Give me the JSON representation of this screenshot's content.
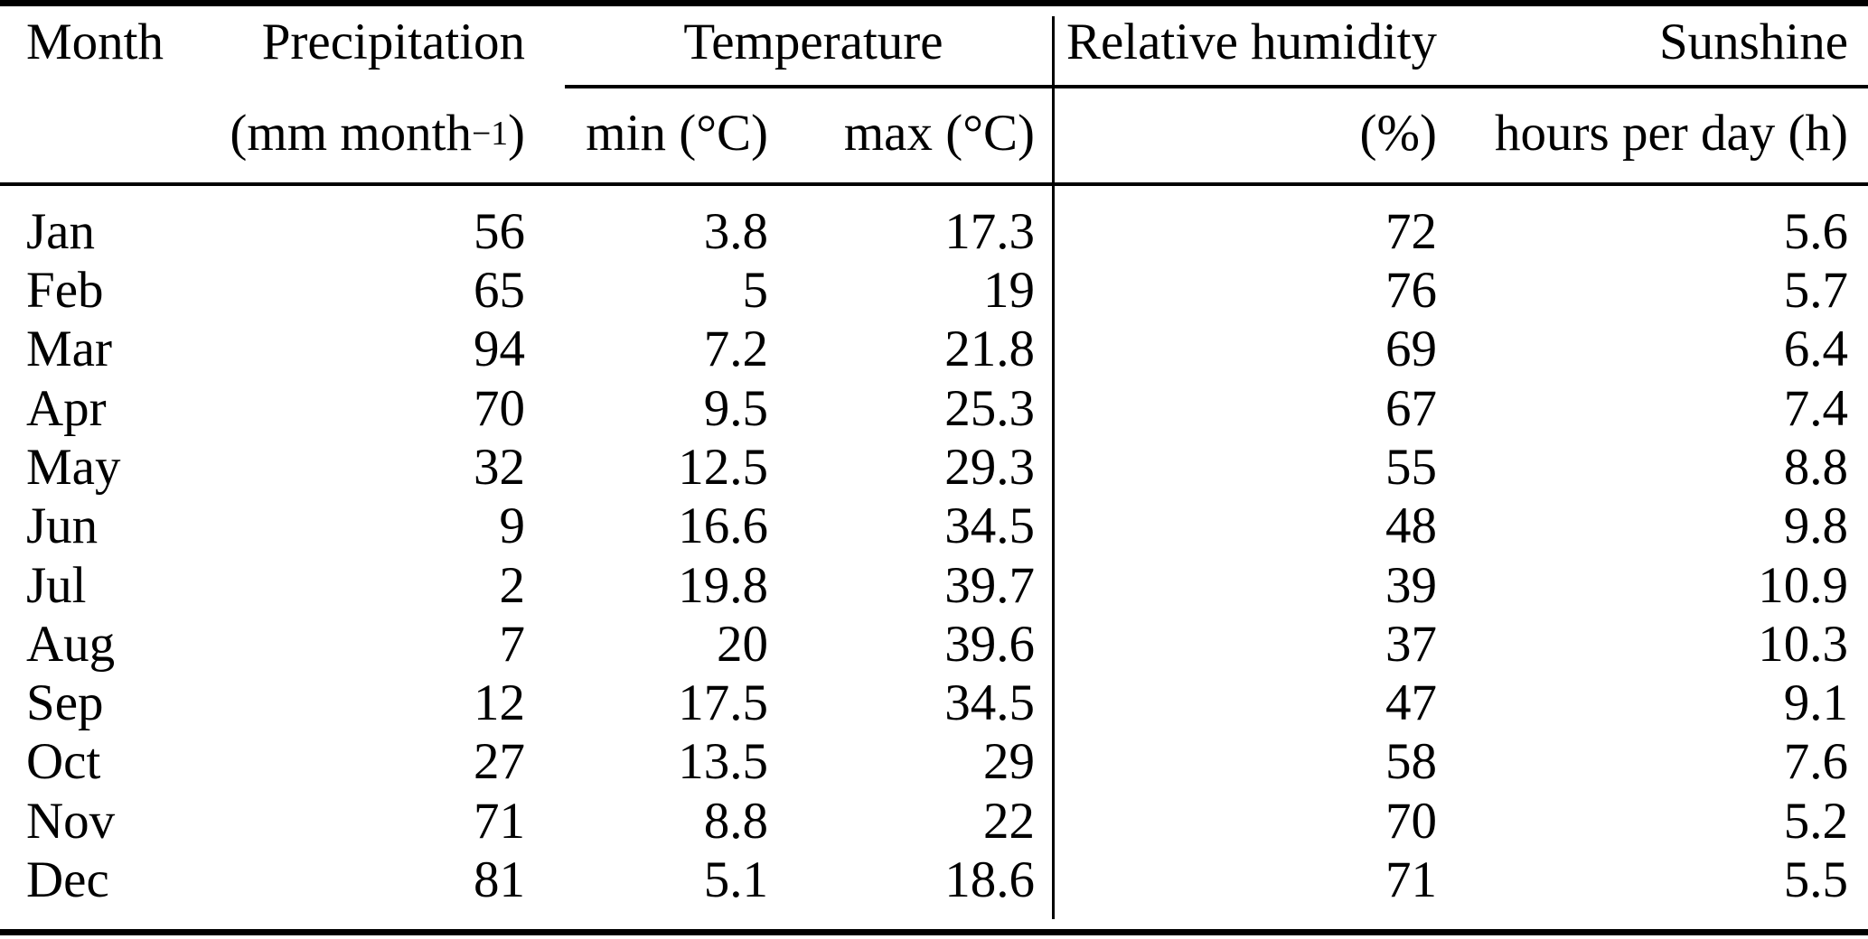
{
  "colors": {
    "background": "#ffffff",
    "text": "#000000",
    "rules": "#000000"
  },
  "table": {
    "header": {
      "month": "Month",
      "precipitation": "Precipitation",
      "temperature_group": "Temperature",
      "relative_humidity": "Relative humidity",
      "sunshine": "Sunshine",
      "units": {
        "precipitation_base": "(mm month",
        "precipitation_exponent": "−1",
        "precipitation_close": ")",
        "temp_min": "min (°C)",
        "temp_max": "max (°C)",
        "humidity": "(%)",
        "sunshine": "hours per day (h)"
      }
    },
    "rows": [
      {
        "month": "Jan",
        "precipitation": "56",
        "temp_min": "3.8",
        "temp_max": "17.3",
        "humidity": "72",
        "sunshine": "5.6"
      },
      {
        "month": "Feb",
        "precipitation": "65",
        "temp_min": "5",
        "temp_max": "19",
        "humidity": "76",
        "sunshine": "5.7"
      },
      {
        "month": "Mar",
        "precipitation": "94",
        "temp_min": "7.2",
        "temp_max": "21.8",
        "humidity": "69",
        "sunshine": "6.4"
      },
      {
        "month": "Apr",
        "precipitation": "70",
        "temp_min": "9.5",
        "temp_max": "25.3",
        "humidity": "67",
        "sunshine": "7.4"
      },
      {
        "month": "May",
        "precipitation": "32",
        "temp_min": "12.5",
        "temp_max": "29.3",
        "humidity": "55",
        "sunshine": "8.8"
      },
      {
        "month": "Jun",
        "precipitation": "9",
        "temp_min": "16.6",
        "temp_max": "34.5",
        "humidity": "48",
        "sunshine": "9.8"
      },
      {
        "month": "Jul",
        "precipitation": "2",
        "temp_min": "19.8",
        "temp_max": "39.7",
        "humidity": "39",
        "sunshine": "10.9"
      },
      {
        "month": "Aug",
        "precipitation": "7",
        "temp_min": "20",
        "temp_max": "39.6",
        "humidity": "37",
        "sunshine": "10.3"
      },
      {
        "month": "Sep",
        "precipitation": "12",
        "temp_min": "17.5",
        "temp_max": "34.5",
        "humidity": "47",
        "sunshine": "9.1"
      },
      {
        "month": "Oct",
        "precipitation": "27",
        "temp_min": "13.5",
        "temp_max": "29",
        "humidity": "58",
        "sunshine": "7.6"
      },
      {
        "month": "Nov",
        "precipitation": "71",
        "temp_min": "8.8",
        "temp_max": "22",
        "humidity": "70",
        "sunshine": "5.2"
      },
      {
        "month": "Dec",
        "precipitation": "81",
        "temp_min": "5.1",
        "temp_max": "18.6",
        "humidity": "71",
        "sunshine": "5.5"
      }
    ]
  },
  "chart_data": {
    "type": "table",
    "columns": [
      "Month",
      "Precipitation (mm month−1)",
      "Temperature min (°C)",
      "Temperature max (°C)",
      "Relative humidity (%)",
      "Sunshine hours per day (h)"
    ],
    "categories": [
      "Jan",
      "Feb",
      "Mar",
      "Apr",
      "May",
      "Jun",
      "Jul",
      "Aug",
      "Sep",
      "Oct",
      "Nov",
      "Dec"
    ],
    "series": [
      {
        "name": "Precipitation (mm month−1)",
        "values": [
          56,
          65,
          94,
          70,
          32,
          9,
          2,
          7,
          12,
          27,
          71,
          81
        ]
      },
      {
        "name": "Temperature min (°C)",
        "values": [
          3.8,
          5,
          7.2,
          9.5,
          12.5,
          16.6,
          19.8,
          20,
          17.5,
          13.5,
          8.8,
          5.1
        ]
      },
      {
        "name": "Temperature max (°C)",
        "values": [
          17.3,
          19,
          21.8,
          25.3,
          29.3,
          34.5,
          39.7,
          39.6,
          34.5,
          29,
          22,
          18.6
        ]
      },
      {
        "name": "Relative humidity (%)",
        "values": [
          72,
          76,
          69,
          67,
          55,
          48,
          39,
          37,
          47,
          58,
          70,
          71
        ]
      },
      {
        "name": "Sunshine hours per day (h)",
        "values": [
          5.6,
          5.7,
          6.4,
          7.4,
          8.8,
          9.8,
          10.9,
          10.3,
          9.1,
          7.6,
          5.2,
          5.5
        ]
      }
    ]
  }
}
